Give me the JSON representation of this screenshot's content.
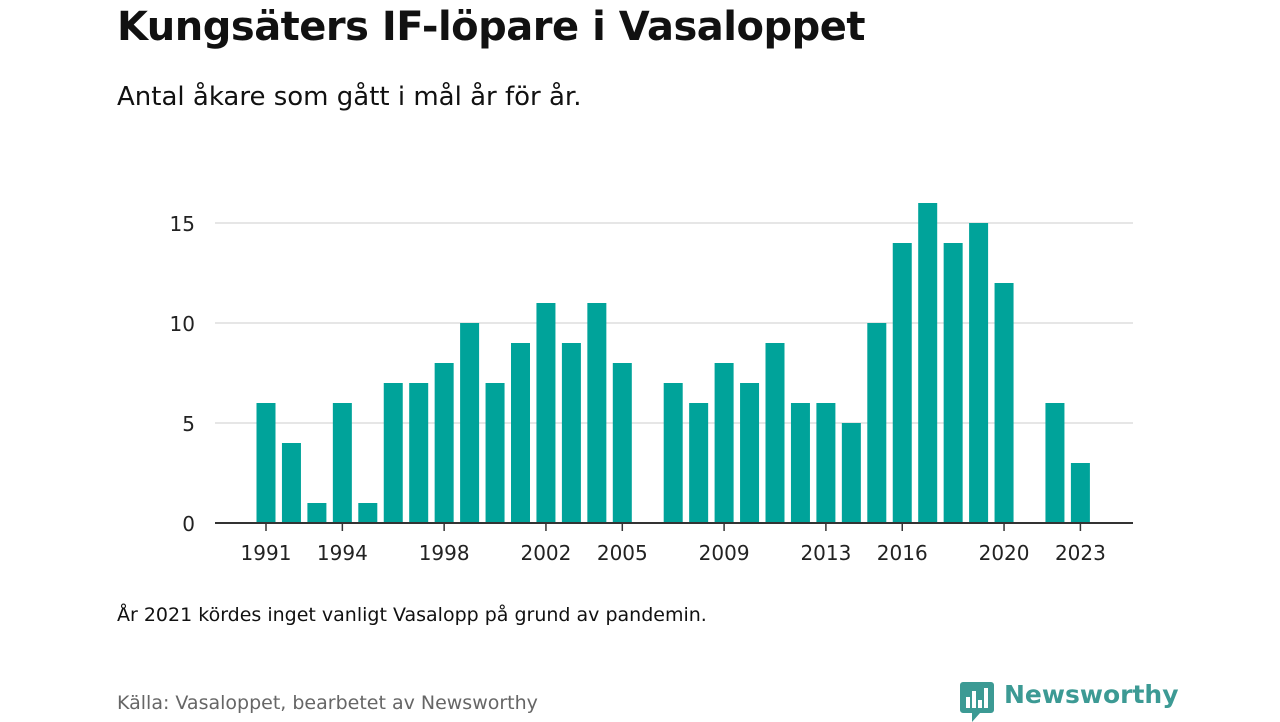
{
  "header": {
    "title": "Kungsäters IF-löpare i Vasaloppet",
    "subtitle": "Antal åkare som gått i mål år för år."
  },
  "footer": {
    "note": "År 2021 kördes inget vanligt Vasalopp på grund av pandemin.",
    "source": "Källa: Vasaloppet, bearbetet av Newsworthy",
    "brand": "Newsworthy"
  },
  "colors": {
    "bar": "#00A39A",
    "brand": "#3C9A94",
    "grid": "#DDDDDD",
    "axis": "#333333"
  },
  "icons": [
    "newsworthy-logo-icon"
  ],
  "chart_data": {
    "type": "bar",
    "title": "Kungsäters IF-löpare i Vasaloppet",
    "subtitle": "Antal åkare som gått i mål år för år.",
    "x": [
      1991,
      1992,
      1993,
      1994,
      1995,
      1996,
      1997,
      1998,
      1999,
      2000,
      2001,
      2002,
      2003,
      2004,
      2005,
      2006,
      2007,
      2008,
      2009,
      2010,
      2011,
      2012,
      2013,
      2014,
      2015,
      2016,
      2017,
      2018,
      2019,
      2020,
      2021,
      2022,
      2023
    ],
    "values": [
      6,
      4,
      1,
      6,
      1,
      7,
      7,
      8,
      10,
      7,
      9,
      11,
      9,
      11,
      8,
      0,
      7,
      6,
      8,
      7,
      9,
      6,
      6,
      5,
      10,
      14,
      16,
      14,
      15,
      12,
      null,
      6,
      3
    ],
    "xticks": [
      1991,
      1994,
      1998,
      2002,
      2005,
      2009,
      2013,
      2016,
      2020,
      2023
    ],
    "yticks": [
      0,
      5,
      10,
      15
    ],
    "ylim": [
      0,
      16
    ],
    "xlabel": "",
    "ylabel": "",
    "grid": true,
    "legend": "none"
  }
}
